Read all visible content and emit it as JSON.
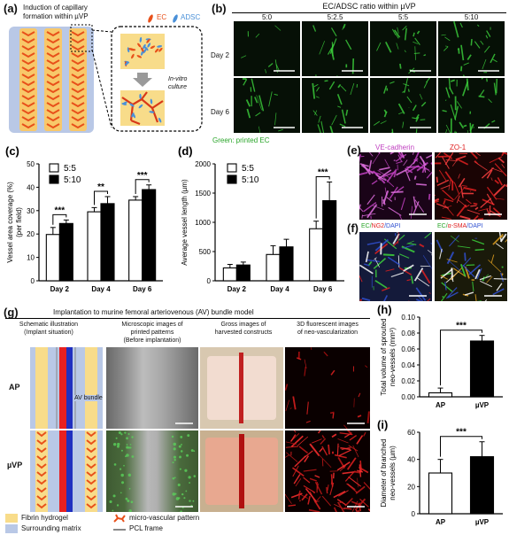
{
  "panels": {
    "a": {
      "label": "(a)",
      "title_line1": "Induction of capillary",
      "title_line2": "formation within µVP",
      "legend_ec": "EC",
      "legend_adsc": "ADSC",
      "culture_line1": "In-vitro",
      "culture_line2": "culture"
    },
    "b": {
      "label": "(b)",
      "header": "EC/ADSC ratio within µVP",
      "ratios": [
        "5:0",
        "5:2.5",
        "5:5",
        "5:10"
      ],
      "rows": [
        "Day 2",
        "Day 6"
      ],
      "caption": "Green: printed EC"
    },
    "e": {
      "label": "(e)",
      "stain1": "VE-cadherin",
      "stain2": "ZO-1"
    },
    "f": {
      "label": "(f)",
      "stain1_ec": "EC/",
      "stain1_ng2": "NG2",
      "stain1_dapi": "/DAPI",
      "stain2_ec": "EC/",
      "stain2_sma": "α-SMA",
      "stain2_dapi": "/DAPI"
    },
    "g": {
      "label": "(g)",
      "title": "Implantation to murine femoral arteriovenous (AV) bundle model",
      "col1_l1": "Schematic illustration",
      "col1_l2": "(Implant situation)",
      "col2_l1": "Microscopic images of",
      "col2_l2": "printed patterns",
      "col2_l3": "(Before implantation)",
      "col3_l1": "Gross images of",
      "col3_l2": "harvested constructs",
      "col4_l1": "3D fluorescent images",
      "col4_l2": "of neo-vascularization",
      "row1": "AP",
      "row2": "µVP",
      "av_bundle": "AV bundle",
      "legend_fibrin": "Fibrin hydrogel",
      "legend_matrix": "Surrounding matrix",
      "legend_pattern": "micro-vascular pattern",
      "legend_pcl": "PCL frame"
    }
  },
  "colors": {
    "fibrin": "#f8dc8a",
    "matrix": "#b9c8e6",
    "vessel": "#e8501a",
    "green": "#3cd23c",
    "magenta": "#c040c0",
    "red": "#e02020"
  },
  "chart_data": [
    {
      "id": "c",
      "label": "(c)",
      "type": "bar",
      "categories": [
        "Day 2",
        "Day 4",
        "Day 6"
      ],
      "series": [
        {
          "name": "5:5",
          "values": [
            19.8,
            29.5,
            34.5
          ],
          "errors": [
            3.0,
            1.8,
            1.5
          ],
          "color": "#ffffff"
        },
        {
          "name": "5:10",
          "values": [
            24.5,
            33.0,
            39.0
          ],
          "errors": [
            1.5,
            3.0,
            2.0
          ],
          "color": "#000000"
        }
      ],
      "ylabel": "Vessel area coverage (%)",
      "ylabel2": "(per field)",
      "ylim": [
        0,
        50
      ],
      "yticks": [
        0,
        10,
        20,
        30,
        40,
        50
      ],
      "significance": [
        "***",
        "**",
        "***"
      ]
    },
    {
      "id": "d",
      "label": "(d)",
      "type": "bar",
      "categories": [
        "Day 2",
        "Day 4",
        "Day 6"
      ],
      "series": [
        {
          "name": "5:5",
          "values": [
            220,
            450,
            890
          ],
          "errors": [
            60,
            150,
            130
          ],
          "color": "#ffffff"
        },
        {
          "name": "5:10",
          "values": [
            270,
            580,
            1370
          ],
          "errors": [
            50,
            130,
            320
          ],
          "color": "#000000"
        }
      ],
      "ylabel": "Average vessel length (µm)",
      "ylim": [
        0,
        2000
      ],
      "yticks": [
        0,
        500,
        1000,
        1500,
        2000
      ],
      "significance": [
        "",
        "",
        "***"
      ]
    },
    {
      "id": "h",
      "label": "(h)",
      "type": "bar",
      "categories": [
        "AP",
        "µVP"
      ],
      "series": [
        {
          "values": [
            0.005,
            0.07
          ],
          "errors": [
            0.006,
            0.007
          ],
          "colors": [
            "#ffffff",
            "#000000"
          ]
        }
      ],
      "ylabel": "Total volume of sprouted",
      "ylabel2": "neo-vessels (mm³)",
      "ylim": [
        0,
        0.1
      ],
      "yticks": [
        "0.00",
        "0.02",
        "0.04",
        "0.06",
        "0.08",
        "0.10"
      ],
      "significance": "***"
    },
    {
      "id": "i",
      "label": "(i)",
      "type": "bar",
      "categories": [
        "AP",
        "µVP"
      ],
      "series": [
        {
          "values": [
            30,
            42
          ],
          "errors": [
            10,
            11
          ],
          "colors": [
            "#ffffff",
            "#000000"
          ]
        }
      ],
      "ylabel": "Diameter of branched",
      "ylabel2": "neo-vessels (µm)",
      "ylim": [
        0,
        60
      ],
      "yticks": [
        0,
        20,
        40,
        60
      ],
      "significance": "***"
    }
  ]
}
